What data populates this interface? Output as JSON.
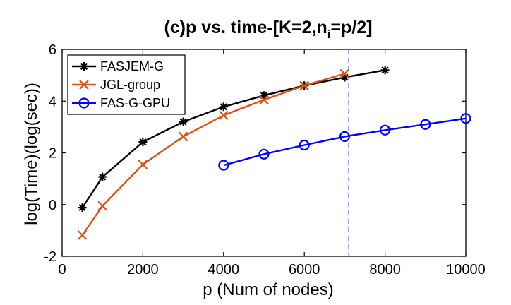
{
  "chart_data": {
    "type": "line",
    "title": "(c)p vs. time-[K=2,n",
    "title_subscript": "i",
    "title_suffix": "=p/2]",
    "xlabel": "p (Num of nodes)",
    "ylabel": "log(Time)(log(sec))",
    "xlim": [
      0,
      10000
    ],
    "ylim": [
      -2,
      6
    ],
    "xticks": [
      0,
      2000,
      4000,
      6000,
      8000,
      10000
    ],
    "xtick_labels": [
      "0",
      "2000",
      "4000",
      "6000",
      "8000",
      "10000"
    ],
    "yticks": [
      -2,
      0,
      2,
      4,
      6
    ],
    "ytick_labels": [
      "-2",
      "0",
      "2",
      "4",
      "6"
    ],
    "grid": false,
    "legend_position": "top-left",
    "reference_line": {
      "x": 7100,
      "style": "dashed",
      "color": "#5555ee"
    },
    "series": [
      {
        "name": "FASJEM-G",
        "color": "#000000",
        "marker": "asterisk",
        "x": [
          500,
          1000,
          2000,
          3000,
          4000,
          5000,
          6000,
          7000,
          8000
        ],
        "y": [
          -0.12,
          1.07,
          2.42,
          3.2,
          3.78,
          4.22,
          4.6,
          4.92,
          5.2
        ]
      },
      {
        "name": "JGL-group",
        "color": "#d95319",
        "marker": "x",
        "x": [
          500,
          1000,
          2000,
          3000,
          4000,
          5000,
          6000,
          7000
        ],
        "y": [
          -1.18,
          -0.05,
          1.55,
          2.63,
          3.45,
          4.05,
          4.6,
          5.06
        ]
      },
      {
        "name": "FAS-G-GPU",
        "color": "#0000ff",
        "marker": "circle",
        "x": [
          4000,
          5000,
          6000,
          7000,
          8000,
          9000,
          10000
        ],
        "y": [
          1.52,
          1.95,
          2.3,
          2.63,
          2.88,
          3.1,
          3.33
        ]
      }
    ]
  }
}
